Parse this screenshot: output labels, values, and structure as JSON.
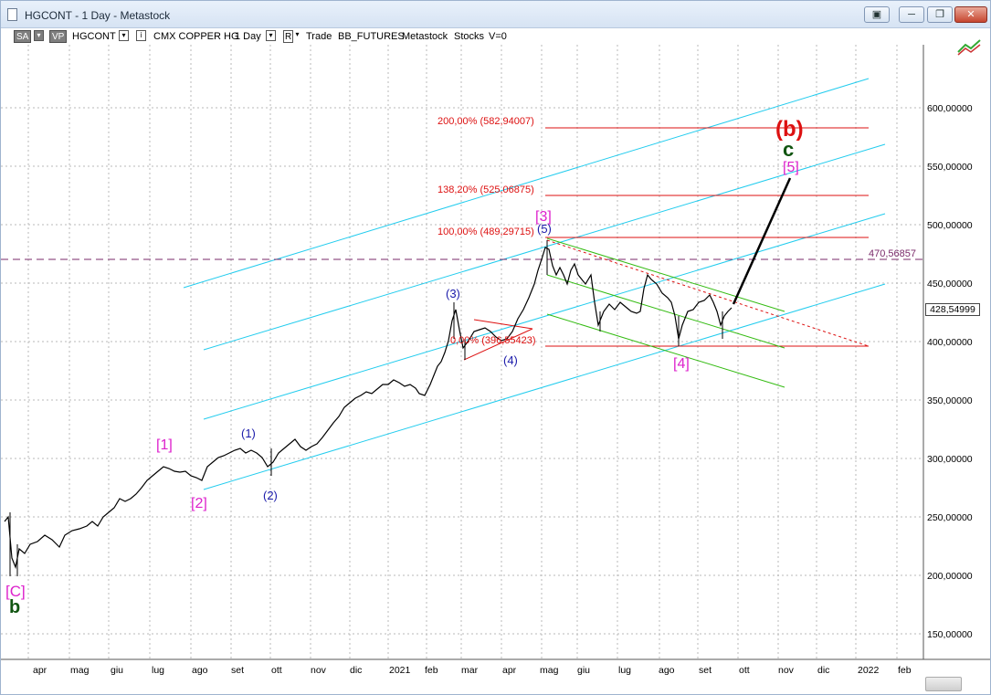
{
  "window": {
    "title": "HGCONT - 1 Day - Metastock",
    "buttons": [
      "▣",
      "─",
      "❐",
      "✕"
    ]
  },
  "toolbar": {
    "sa": "SA",
    "vp": "VP",
    "symbol": "HGCONT",
    "name": "CMX COPPER HG",
    "period": "1 Day",
    "r_label": "R",
    "trade": "Trade",
    "feed": "BB_FUTURES",
    "provider": "Metastock",
    "type": "Stocks",
    "volume": "V=0"
  },
  "price_axis": {
    "labels": [
      "600,00000",
      "550,00000",
      "500,00000",
      "450,00000",
      "400,00000",
      "350,00000",
      "300,00000",
      "250,00000",
      "200,00000",
      "150,00000"
    ],
    "current_price": "428,54999",
    "horizontal_line_label": "470,56857"
  },
  "time_axis": {
    "labels": [
      "apr",
      "mag",
      "giu",
      "lug",
      "ago",
      "set",
      "ott",
      "nov",
      "dic",
      "2021",
      "feb",
      "mar",
      "apr",
      "mag",
      "giu",
      "lug",
      "ago",
      "set",
      "ott",
      "nov",
      "dic",
      "2022",
      "feb"
    ]
  },
  "fib_levels": {
    "l200": "200,00% (582,94007)",
    "l138": "138,20% (525,06875)",
    "l100": "100,00% (489,29715)",
    "l0": "0,00% (396,55423)"
  },
  "wave_labels": {
    "C_bracket": "[C]",
    "b_small": "b",
    "w1_bracket": "[1]",
    "w2_bracket": "[2]",
    "w1_paren": "(1)",
    "w2_paren": "(2)",
    "w3_paren": "(3)",
    "w4_paren": "(4)",
    "w5_paren": "(5)",
    "w3_bracket": "[3]",
    "w4_bracket": "[4]",
    "w5_bracket": "[5]",
    "b_paren": "(b)",
    "c_small": "c"
  },
  "colors": {
    "channel": "#22ccee",
    "fib": "#dd1111",
    "wave_bracket": "#dd22cc",
    "wave_paren": "#1a1aaa",
    "green_line": "#33bb11",
    "dark_green": "#115511",
    "dashed_level": "#7a2a6a"
  },
  "chart_data": {
    "type": "line",
    "title": "",
    "xlabel": "",
    "ylabel": "",
    "ylim": [
      110,
      640
    ],
    "x": [
      "mar",
      "apr",
      "mag",
      "giu",
      "lug",
      "ago",
      "set",
      "ott",
      "nov",
      "dic",
      "2021",
      "feb",
      "mar",
      "apr",
      "mag",
      "giu",
      "lug",
      "ago",
      "set"
    ],
    "series": [
      {
        "values": [
          240,
          210,
          225,
          250,
          285,
          290,
          300,
          305,
          315,
          345,
          360,
          420,
          405,
          410,
          470,
          440,
          440,
          425,
          430
        ]
      }
    ],
    "grid": true
  }
}
